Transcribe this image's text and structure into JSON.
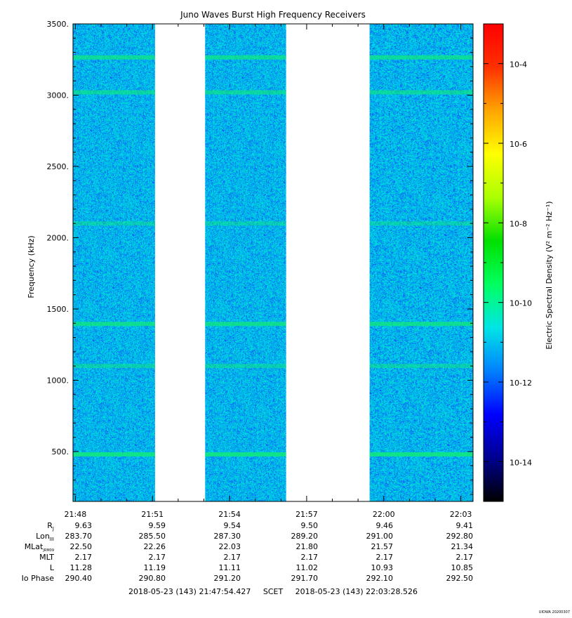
{
  "chart_data": {
    "type": "heatmap",
    "title": "Juno Waves Burst High Frequency Receivers",
    "ylabel": "Frequency (kHz)",
    "ylim": [
      150,
      3500
    ],
    "y_ticks": [
      "500.",
      "1000.",
      "1500.",
      "2000.",
      "2500.",
      "3000.",
      "3500."
    ],
    "y_tick_values": [
      500,
      1000,
      1500,
      2000,
      2500,
      3000,
      3500
    ],
    "x_time_range": [
      "21:47:54.427",
      "22:03:28.526"
    ],
    "x_ticks": [
      "21:48",
      "21:51",
      "21:54",
      "21:57",
      "22:00",
      "22:03"
    ],
    "x_tick_minutes": [
      48,
      51,
      54,
      57,
      60,
      63
    ],
    "data_blocks": [
      {
        "start": "21:47:54",
        "end": "21:51:06"
      },
      {
        "start": "21:53:03",
        "end": "21:56:12"
      },
      {
        "start": "21:59:27",
        "end": "22:03:28"
      }
    ],
    "spectral_lines_khz": [
      {
        "freq": 480,
        "strength": 1.0
      },
      {
        "freq": 1395,
        "strength": 0.85
      },
      {
        "freq": 3020,
        "strength": 0.55
      },
      {
        "freq": 3265,
        "strength": 0.7
      },
      {
        "freq": 1100,
        "strength": 0.3
      },
      {
        "freq": 2100,
        "strength": 0.2
      }
    ],
    "background_level": "10^-12",
    "colorbar": {
      "label": "Electric Spectral Density (V² m⁻² Hz⁻¹)",
      "scale": "log",
      "min_exp": -15,
      "max_exp": -3,
      "ticks": [
        {
          "exp": -4,
          "label": "10-4"
        },
        {
          "exp": -6,
          "label": "10-6"
        },
        {
          "exp": -8,
          "label": "10-8"
        },
        {
          "exp": -10,
          "label": "10-10"
        },
        {
          "exp": -12,
          "label": "10-12"
        },
        {
          "exp": -14,
          "label": "10-14"
        }
      ],
      "colors": [
        "#000000",
        "#00008f",
        "#0000ff",
        "#0080ff",
        "#00e5e5",
        "#00ff60",
        "#00e000",
        "#aaff00",
        "#ffff00",
        "#ffa500",
        "#ff3000",
        "#ff0000"
      ]
    },
    "ephemeris": [
      {
        "label": "R",
        "sub": "J",
        "values": [
          "9.63",
          "9.59",
          "9.54",
          "9.50",
          "9.46",
          "9.41"
        ]
      },
      {
        "label": "Lon",
        "sub": "III",
        "values": [
          "283.70",
          "285.50",
          "287.30",
          "289.20",
          "291.00",
          "292.80"
        ]
      },
      {
        "label": "MLat",
        "sub": "JRM09",
        "values": [
          "22.50",
          "22.26",
          "22.03",
          "21.80",
          "21.57",
          "21.34"
        ]
      },
      {
        "label": "MLT",
        "sub": "",
        "values": [
          "2.17",
          "2.17",
          "2.17",
          "2.17",
          "2.17",
          "2.17"
        ]
      },
      {
        "label": "L",
        "sub": "",
        "values": [
          "11.28",
          "11.19",
          "11.11",
          "11.02",
          "10.93",
          "10.85"
        ]
      },
      {
        "label": "Io Phase",
        "sub": "",
        "values": [
          "290.40",
          "290.80",
          "291.20",
          "291.70",
          "292.10",
          "292.50"
        ]
      }
    ],
    "time_footer": "2018-05-23 (143) 21:47:54.427     SCET     2018-05-23 (143) 22:03:28.526",
    "stamp": "UIOWA 20200307"
  }
}
